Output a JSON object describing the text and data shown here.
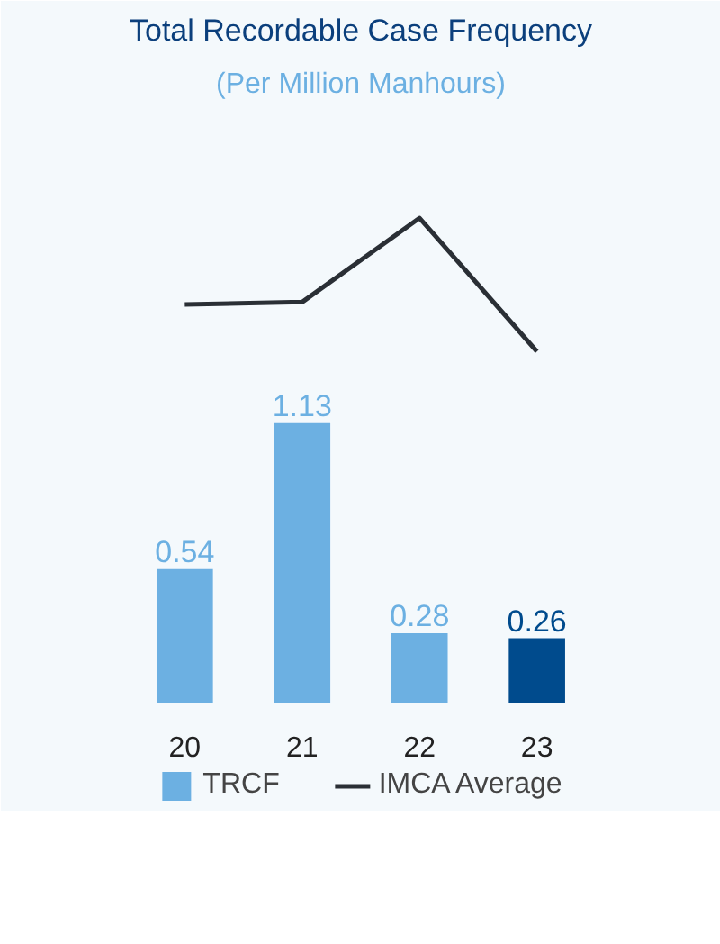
{
  "chart_data": {
    "type": "bar",
    "title": "Total Recordable Case Frequency",
    "subtitle": "(Per Million Manhours)",
    "categories": [
      "20",
      "21",
      "22",
      "23"
    ],
    "tick_labels": "x",
    "grid": false,
    "legend": "bottom",
    "series": [
      {
        "name": "TRCF",
        "values": [
          0.54,
          1.13,
          0.28,
          0.26
        ],
        "colors": [
          "#6cb0e2",
          "#6cb0e2",
          "#6cb0e2",
          "#004b8d"
        ],
        "value_labels": [
          "0.54",
          "1.13",
          "0.28",
          "0.26"
        ]
      },
      {
        "name": "IMCA Average",
        "type": "line",
        "color": "#2a2f35",
        "values": [
          1.61,
          1.62,
          1.96,
          1.42
        ]
      }
    ]
  }
}
